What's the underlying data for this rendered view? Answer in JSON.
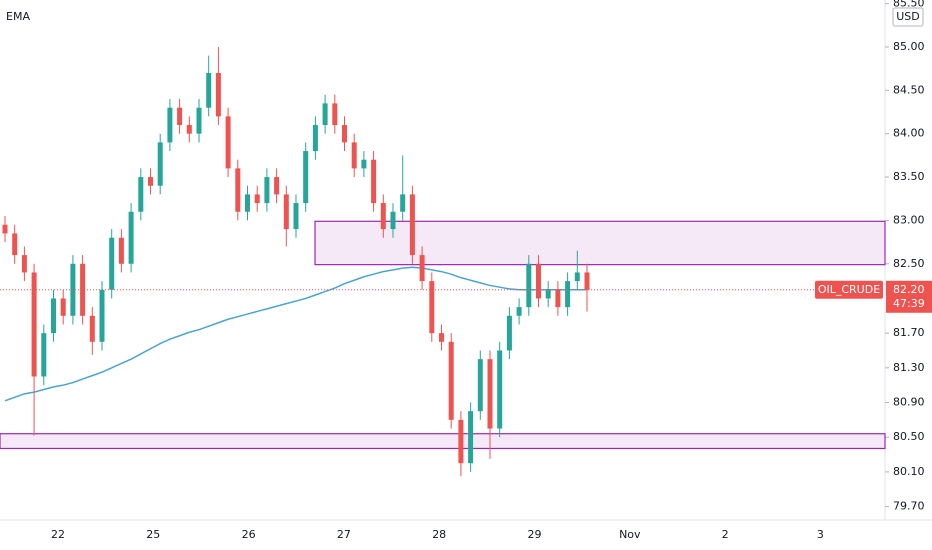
{
  "chart_data": {
    "type": "candlestick",
    "symbol": "OIL_CRUDE",
    "currency": "USD",
    "countdown": "47:39",
    "last_price": {
      "value": 82.2,
      "label": "82.20"
    },
    "up_color": "#26a69a",
    "down_color": "#ef5350",
    "x_labels": [
      "22",
      "25",
      "26",
      "27",
      "28",
      "29",
      "Nov",
      "2",
      "3"
    ],
    "open": [
      82.95,
      82.85,
      82.6,
      82.4,
      81.2,
      81.7,
      82.1,
      81.9,
      82.5,
      81.9,
      81.6,
      82.2,
      82.8,
      82.5,
      83.1,
      83.5,
      83.4,
      83.9,
      84.3,
      84.1,
      84.0,
      84.3,
      84.7,
      84.2,
      83.6,
      83.1,
      83.3,
      83.2,
      83.5,
      83.3,
      82.9,
      83.2,
      83.8,
      84.1,
      84.35,
      84.1,
      83.9,
      83.6,
      83.7,
      83.2,
      82.9,
      83.1,
      83.3,
      82.6,
      82.3,
      81.7,
      81.6,
      80.7,
      80.2,
      80.8,
      81.4,
      80.6,
      81.5,
      81.9,
      82.0,
      82.5,
      82.1,
      82.2,
      82.0,
      82.3,
      82.4
    ],
    "high": [
      83.05,
      82.95,
      82.7,
      82.5,
      81.8,
      82.2,
      82.2,
      82.6,
      82.6,
      82.0,
      82.3,
      82.9,
      82.9,
      83.2,
      83.6,
      83.6,
      84.0,
      84.4,
      84.4,
      84.2,
      84.4,
      84.9,
      85.0,
      84.3,
      83.7,
      83.4,
      83.4,
      83.6,
      83.6,
      83.4,
      83.3,
      83.9,
      84.2,
      84.45,
      84.45,
      84.2,
      84.0,
      83.8,
      83.8,
      83.3,
      83.2,
      83.75,
      83.4,
      82.7,
      82.4,
      81.8,
      81.7,
      80.8,
      80.9,
      81.5,
      81.5,
      81.6,
      82.0,
      82.1,
      82.6,
      82.6,
      82.3,
      82.3,
      82.4,
      82.65,
      82.5
    ],
    "low": [
      82.75,
      82.5,
      82.3,
      80.52,
      81.1,
      81.6,
      81.8,
      81.8,
      81.8,
      81.45,
      81.5,
      82.1,
      82.4,
      82.4,
      83.0,
      83.3,
      83.3,
      83.8,
      84.0,
      83.9,
      83.9,
      84.2,
      84.1,
      83.5,
      83.0,
      83.0,
      83.1,
      83.1,
      83.2,
      82.7,
      82.8,
      83.1,
      83.7,
      84.0,
      84.0,
      83.8,
      83.5,
      83.5,
      83.1,
      82.8,
      82.8,
      83.0,
      82.5,
      82.2,
      81.6,
      81.5,
      80.6,
      80.05,
      80.1,
      80.7,
      80.25,
      80.5,
      81.4,
      81.8,
      81.9,
      82.0,
      82.0,
      81.9,
      81.9,
      82.2,
      81.95
    ],
    "close": [
      82.85,
      82.6,
      82.4,
      81.2,
      81.7,
      82.1,
      81.9,
      82.5,
      81.9,
      81.6,
      82.2,
      82.8,
      82.5,
      83.1,
      83.5,
      83.4,
      83.9,
      84.3,
      84.1,
      84.0,
      84.3,
      84.7,
      84.2,
      83.6,
      83.1,
      83.3,
      83.2,
      83.5,
      83.3,
      82.9,
      83.2,
      83.8,
      84.1,
      84.35,
      84.1,
      83.9,
      83.6,
      83.7,
      83.2,
      82.9,
      83.1,
      83.3,
      82.6,
      82.3,
      81.7,
      81.6,
      80.7,
      80.2,
      80.8,
      81.4,
      80.6,
      81.5,
      81.9,
      82.0,
      82.5,
      82.1,
      82.2,
      82.0,
      82.3,
      82.4,
      82.2
    ],
    "ema": {
      "name": "EMA",
      "color": "#4ba3d3",
      "values": [
        80.92,
        80.96,
        81.0,
        81.02,
        81.05,
        81.08,
        81.1,
        81.13,
        81.17,
        81.21,
        81.25,
        81.3,
        81.35,
        81.4,
        81.46,
        81.52,
        81.58,
        81.63,
        81.67,
        81.71,
        81.74,
        81.78,
        81.82,
        81.86,
        81.89,
        81.92,
        81.95,
        81.98,
        82.01,
        82.04,
        82.07,
        82.1,
        82.14,
        82.18,
        82.22,
        82.27,
        82.31,
        82.35,
        82.38,
        82.41,
        82.43,
        82.45,
        82.46,
        82.45,
        82.43,
        82.41,
        82.38,
        82.34,
        82.31,
        82.28,
        82.25,
        82.23,
        82.21,
        82.2,
        82.2,
        82.2,
        82.2,
        82.2,
        82.2,
        82.2,
        82.2
      ]
    },
    "zones": [
      {
        "low": 82.49,
        "high": 82.99,
        "color": "#9c27b0"
      },
      {
        "low": 80.37,
        "high": 80.54,
        "color": "#9c27b0"
      }
    ],
    "ylim": [
      79.545,
      85.542
    ],
    "yticks": [
      {
        "value": 85.5,
        "label": "85.50"
      },
      {
        "value": 85,
        "label": "85.00"
      },
      {
        "value": 84.5,
        "label": "84.50"
      },
      {
        "value": 84,
        "label": "84.00"
      },
      {
        "value": 83.5,
        "label": "83.50"
      },
      {
        "value": 83,
        "label": "83.00"
      },
      {
        "value": 82.5,
        "label": "82.50"
      },
      {
        "value": 81.7,
        "label": "81.70"
      },
      {
        "value": 81.3,
        "label": "81.30"
      },
      {
        "value": 80.9,
        "label": "80.90"
      },
      {
        "value": 80.5,
        "label": "80.50"
      },
      {
        "value": 80.1,
        "label": "80.10"
      },
      {
        "value": 79.7,
        "label": "79.70"
      }
    ]
  }
}
